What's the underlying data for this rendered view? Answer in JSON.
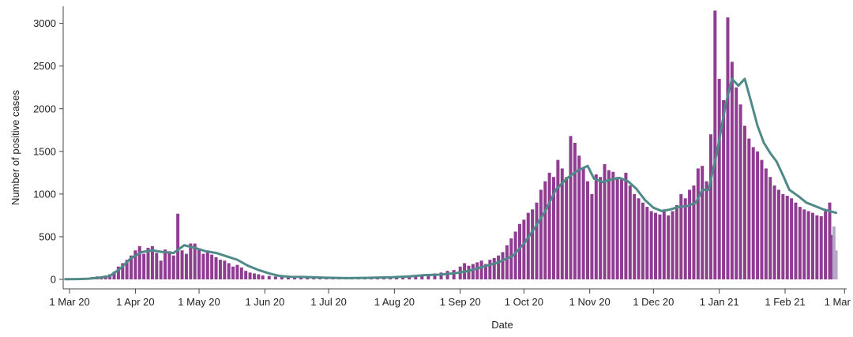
{
  "chart_data": {
    "type": "bar",
    "xlabel": "Date",
    "ylabel": "Number of positive cases",
    "ylim": [
      0,
      3200
    ],
    "yticks": [
      0,
      500,
      1000,
      1500,
      2000,
      2500,
      3000
    ],
    "xticks": [
      "1 Mar 20",
      "1 Apr 20",
      "1 May 20",
      "1 Jun 20",
      "1 Jul 20",
      "1 Aug 20",
      "1 Sep 20",
      "1 Oct 20",
      "1 Nov 20",
      "1 Dec 20",
      "1 Jan 21",
      "1 Feb 21",
      "1 Mar 21"
    ],
    "x_range": [
      "2020-02-27",
      "2021-03-02"
    ],
    "grid": false,
    "legend": "none",
    "colors": {
      "bars": "#8e3d91",
      "bars_recent": "#b7a6c9",
      "line": "#4f8a88"
    },
    "series": [
      {
        "type": "bar",
        "points": [
          [
            "2020-02-28",
            3
          ],
          [
            "2020-03-03",
            5
          ],
          [
            "2020-03-06",
            8
          ],
          [
            "2020-03-08",
            12
          ],
          [
            "2020-03-10",
            18
          ],
          [
            "2020-03-12",
            28
          ],
          [
            "2020-03-14",
            35
          ],
          [
            "2020-03-16",
            30
          ],
          [
            "2020-03-18",
            45
          ],
          [
            "2020-03-20",
            60
          ],
          [
            "2020-03-22",
            90
          ],
          [
            "2020-03-24",
            150
          ],
          [
            "2020-03-26",
            190
          ],
          [
            "2020-03-28",
            230
          ],
          [
            "2020-03-30",
            280
          ],
          [
            "2020-04-01",
            340
          ],
          [
            "2020-04-03",
            390
          ],
          [
            "2020-04-05",
            300
          ],
          [
            "2020-04-07",
            370
          ],
          [
            "2020-04-09",
            390
          ],
          [
            "2020-04-11",
            310
          ],
          [
            "2020-04-13",
            220
          ],
          [
            "2020-04-15",
            350
          ],
          [
            "2020-04-17",
            330
          ],
          [
            "2020-04-19",
            280
          ],
          [
            "2020-04-21",
            770
          ],
          [
            "2020-04-23",
            340
          ],
          [
            "2020-04-25",
            300
          ],
          [
            "2020-04-27",
            420
          ],
          [
            "2020-04-29",
            420
          ],
          [
            "2020-05-01",
            350
          ],
          [
            "2020-05-03",
            300
          ],
          [
            "2020-05-05",
            340
          ],
          [
            "2020-05-07",
            290
          ],
          [
            "2020-05-09",
            260
          ],
          [
            "2020-05-11",
            230
          ],
          [
            "2020-05-13",
            220
          ],
          [
            "2020-05-15",
            190
          ],
          [
            "2020-05-17",
            150
          ],
          [
            "2020-05-19",
            170
          ],
          [
            "2020-05-21",
            140
          ],
          [
            "2020-05-23",
            100
          ],
          [
            "2020-05-25",
            80
          ],
          [
            "2020-05-27",
            70
          ],
          [
            "2020-05-29",
            60
          ],
          [
            "2020-05-31",
            45
          ],
          [
            "2020-06-03",
            40
          ],
          [
            "2020-06-06",
            35
          ],
          [
            "2020-06-09",
            30
          ],
          [
            "2020-06-12",
            28
          ],
          [
            "2020-06-15",
            25
          ],
          [
            "2020-06-18",
            22
          ],
          [
            "2020-06-21",
            20
          ],
          [
            "2020-06-24",
            18
          ],
          [
            "2020-06-27",
            16
          ],
          [
            "2020-06-30",
            15
          ],
          [
            "2020-07-03",
            14
          ],
          [
            "2020-07-06",
            13
          ],
          [
            "2020-07-09",
            12
          ],
          [
            "2020-07-12",
            12
          ],
          [
            "2020-07-15",
            13
          ],
          [
            "2020-07-18",
            14
          ],
          [
            "2020-07-21",
            15
          ],
          [
            "2020-07-24",
            16
          ],
          [
            "2020-07-27",
            18
          ],
          [
            "2020-07-30",
            20
          ],
          [
            "2020-08-02",
            25
          ],
          [
            "2020-08-05",
            30
          ],
          [
            "2020-08-08",
            40
          ],
          [
            "2020-08-11",
            45
          ],
          [
            "2020-08-14",
            55
          ],
          [
            "2020-08-17",
            60
          ],
          [
            "2020-08-20",
            70
          ],
          [
            "2020-08-23",
            80
          ],
          [
            "2020-08-26",
            100
          ],
          [
            "2020-08-29",
            110
          ],
          [
            "2020-09-01",
            150
          ],
          [
            "2020-09-03",
            190
          ],
          [
            "2020-09-05",
            160
          ],
          [
            "2020-09-07",
            180
          ],
          [
            "2020-09-09",
            200
          ],
          [
            "2020-09-11",
            220
          ],
          [
            "2020-09-13",
            180
          ],
          [
            "2020-09-15",
            230
          ],
          [
            "2020-09-17",
            250
          ],
          [
            "2020-09-19",
            280
          ],
          [
            "2020-09-21",
            320
          ],
          [
            "2020-09-23",
            400
          ],
          [
            "2020-09-25",
            480
          ],
          [
            "2020-09-27",
            560
          ],
          [
            "2020-09-29",
            650
          ],
          [
            "2020-10-01",
            700
          ],
          [
            "2020-10-03",
            780
          ],
          [
            "2020-10-05",
            820
          ],
          [
            "2020-10-07",
            900
          ],
          [
            "2020-10-09",
            1050
          ],
          [
            "2020-10-11",
            1150
          ],
          [
            "2020-10-13",
            1250
          ],
          [
            "2020-10-15",
            1200
          ],
          [
            "2020-10-17",
            1400
          ],
          [
            "2020-10-19",
            1300
          ],
          [
            "2020-10-21",
            1200
          ],
          [
            "2020-10-23",
            1680
          ],
          [
            "2020-10-25",
            1600
          ],
          [
            "2020-10-27",
            1450
          ],
          [
            "2020-10-29",
            1300
          ],
          [
            "2020-10-31",
            1150
          ],
          [
            "2020-11-02",
            1000
          ],
          [
            "2020-11-04",
            1230
          ],
          [
            "2020-11-06",
            1200
          ],
          [
            "2020-11-08",
            1350
          ],
          [
            "2020-11-10",
            1280
          ],
          [
            "2020-11-12",
            1260
          ],
          [
            "2020-11-14",
            1200
          ],
          [
            "2020-11-16",
            1180
          ],
          [
            "2020-11-18",
            1250
          ],
          [
            "2020-11-20",
            1100
          ],
          [
            "2020-11-22",
            1000
          ],
          [
            "2020-11-24",
            950
          ],
          [
            "2020-11-26",
            900
          ],
          [
            "2020-11-28",
            850
          ],
          [
            "2020-11-30",
            800
          ],
          [
            "2020-12-02",
            780
          ],
          [
            "2020-12-04",
            760
          ],
          [
            "2020-12-06",
            820
          ],
          [
            "2020-12-08",
            750
          ],
          [
            "2020-12-10",
            800
          ],
          [
            "2020-12-12",
            870
          ],
          [
            "2020-12-14",
            1000
          ],
          [
            "2020-12-16",
            950
          ],
          [
            "2020-12-18",
            1050
          ],
          [
            "2020-12-20",
            1100
          ],
          [
            "2020-12-22",
            1300
          ],
          [
            "2020-12-24",
            1330
          ],
          [
            "2020-12-26",
            1150
          ],
          [
            "2020-12-28",
            1700
          ],
          [
            "2020-12-30",
            3150
          ],
          [
            "2021-01-01",
            2350
          ],
          [
            "2021-01-03",
            2100
          ],
          [
            "2021-01-05",
            3070
          ],
          [
            "2021-01-07",
            2550
          ],
          [
            "2021-01-09",
            2250
          ],
          [
            "2021-01-11",
            2050
          ],
          [
            "2021-01-13",
            1800
          ],
          [
            "2021-01-15",
            1650
          ],
          [
            "2021-01-17",
            1550
          ],
          [
            "2021-01-19",
            1500
          ],
          [
            "2021-01-21",
            1400
          ],
          [
            "2021-01-23",
            1300
          ],
          [
            "2021-01-25",
            1200
          ],
          [
            "2021-01-27",
            1100
          ],
          [
            "2021-01-29",
            1050
          ],
          [
            "2021-01-31",
            1000
          ],
          [
            "2021-02-02",
            980
          ],
          [
            "2021-02-04",
            950
          ],
          [
            "2021-02-06",
            900
          ],
          [
            "2021-02-08",
            850
          ],
          [
            "2021-02-10",
            820
          ],
          [
            "2021-02-12",
            800
          ],
          [
            "2021-02-14",
            780
          ],
          [
            "2021-02-16",
            750
          ],
          [
            "2021-02-18",
            740
          ],
          [
            "2021-02-20",
            800
          ],
          [
            "2021-02-22",
            900
          ],
          [
            "2021-02-23",
            520
          ]
        ]
      },
      {
        "type": "bar",
        "style": "recent",
        "points": [
          [
            "2021-02-24",
            620
          ],
          [
            "2021-02-25",
            340
          ]
        ]
      },
      {
        "type": "line",
        "points": [
          [
            "2020-02-28",
            2
          ],
          [
            "2020-03-05",
            4
          ],
          [
            "2020-03-10",
            8
          ],
          [
            "2020-03-15",
            20
          ],
          [
            "2020-03-20",
            40
          ],
          [
            "2020-03-25",
            130
          ],
          [
            "2020-03-30",
            250
          ],
          [
            "2020-04-04",
            320
          ],
          [
            "2020-04-09",
            340
          ],
          [
            "2020-04-14",
            320
          ],
          [
            "2020-04-19",
            310
          ],
          [
            "2020-04-24",
            400
          ],
          [
            "2020-04-29",
            370
          ],
          [
            "2020-05-04",
            330
          ],
          [
            "2020-05-09",
            310
          ],
          [
            "2020-05-14",
            270
          ],
          [
            "2020-05-19",
            230
          ],
          [
            "2020-05-24",
            160
          ],
          [
            "2020-05-29",
            110
          ],
          [
            "2020-06-03",
            70
          ],
          [
            "2020-06-08",
            40
          ],
          [
            "2020-06-13",
            30
          ],
          [
            "2020-06-20",
            28
          ],
          [
            "2020-06-30",
            20
          ],
          [
            "2020-07-10",
            15
          ],
          [
            "2020-07-20",
            18
          ],
          [
            "2020-07-31",
            25
          ],
          [
            "2020-08-08",
            35
          ],
          [
            "2020-08-15",
            50
          ],
          [
            "2020-08-22",
            55
          ],
          [
            "2020-08-29",
            70
          ],
          [
            "2020-09-05",
            100
          ],
          [
            "2020-09-12",
            150
          ],
          [
            "2020-09-19",
            200
          ],
          [
            "2020-09-26",
            280
          ],
          [
            "2020-10-01",
            420
          ],
          [
            "2020-10-06",
            600
          ],
          [
            "2020-10-11",
            800
          ],
          [
            "2020-10-16",
            1050
          ],
          [
            "2020-10-21",
            1180
          ],
          [
            "2020-10-26",
            1270
          ],
          [
            "2020-10-31",
            1330
          ],
          [
            "2020-11-03",
            1180
          ],
          [
            "2020-11-07",
            1140
          ],
          [
            "2020-11-11",
            1170
          ],
          [
            "2020-11-15",
            1190
          ],
          [
            "2020-11-19",
            1150
          ],
          [
            "2020-11-23",
            1060
          ],
          [
            "2020-11-27",
            930
          ],
          [
            "2020-12-01",
            840
          ],
          [
            "2020-12-05",
            800
          ],
          [
            "2020-12-09",
            820
          ],
          [
            "2020-12-13",
            850
          ],
          [
            "2020-12-17",
            860
          ],
          [
            "2020-12-21",
            900
          ],
          [
            "2020-12-24",
            1050
          ],
          [
            "2020-12-27",
            1050
          ],
          [
            "2020-12-31",
            1500
          ],
          [
            "2021-01-04",
            2050
          ],
          [
            "2021-01-07",
            2350
          ],
          [
            "2021-01-10",
            2270
          ],
          [
            "2021-01-13",
            2350
          ],
          [
            "2021-01-16",
            2080
          ],
          [
            "2021-01-19",
            1800
          ],
          [
            "2021-01-22",
            1600
          ],
          [
            "2021-01-25",
            1480
          ],
          [
            "2021-01-28",
            1380
          ],
          [
            "2021-01-31",
            1220
          ],
          [
            "2021-02-03",
            1050
          ],
          [
            "2021-02-07",
            980
          ],
          [
            "2021-02-11",
            900
          ],
          [
            "2021-02-15",
            860
          ],
          [
            "2021-02-19",
            820
          ],
          [
            "2021-02-22",
            800
          ],
          [
            "2021-02-25",
            780
          ]
        ]
      }
    ]
  }
}
